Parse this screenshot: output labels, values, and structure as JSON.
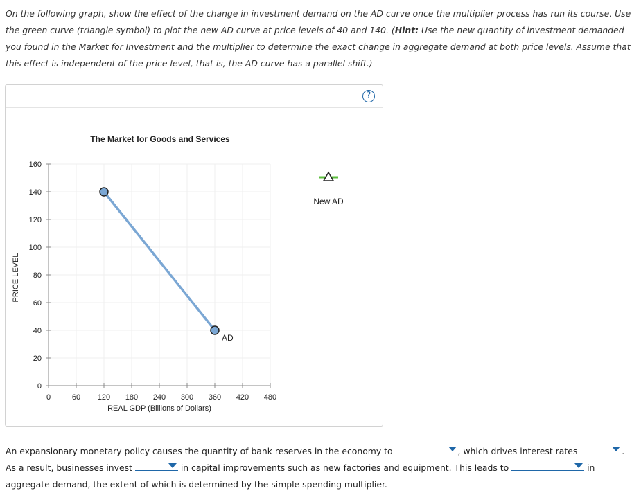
{
  "instructions": {
    "part1": "On the following graph, show the effect of the change in investment demand on the AD curve once the multiplier process has run its course. Use the green curve (triangle symbol) to plot the new AD curve at price levels of 40 and 140. (",
    "hint_label": "Hint:",
    "part2": " Use the new quantity of investment demanded you found in the Market for Investment and the multiplier to determine the exact change in aggregate demand at both price levels. Assume that this effect is independent of the price level, that is, the AD curve has a parallel shift.)"
  },
  "help_icon": "question-icon",
  "chart_data": {
    "type": "line",
    "title": "The Market for Goods and Services",
    "xlabel": "REAL GDP (Billions of Dollars)",
    "ylabel": "PRICE LEVEL",
    "xlim": [
      0,
      480
    ],
    "ylim": [
      0,
      160
    ],
    "x_ticks": [
      0,
      60,
      120,
      180,
      240,
      300,
      360,
      420,
      480
    ],
    "y_ticks": [
      0,
      20,
      40,
      60,
      80,
      100,
      120,
      140,
      160
    ],
    "grid": true,
    "series": [
      {
        "name": "AD",
        "color": "#7ba7d4",
        "marker": "circle",
        "points": [
          [
            120,
            140
          ],
          [
            360,
            40
          ]
        ]
      }
    ],
    "palette_tool": {
      "label": "New AD",
      "color": "#5cbf3e",
      "marker": "triangle"
    }
  },
  "question": {
    "text1": "An expansionary monetary policy causes the quantity of bank reserves in the economy to",
    "text2": ", which drives interest rates",
    "text3": ". As a result, businesses invest",
    "text4": "in capital improvements such as new factories and equipment. This leads to",
    "text5": "in aggregate demand, the extent of which is determined by the simple spending multiplier.",
    "dropdown_reserves": "",
    "dropdown_interest": "",
    "dropdown_invest": "",
    "dropdown_ad": ""
  }
}
